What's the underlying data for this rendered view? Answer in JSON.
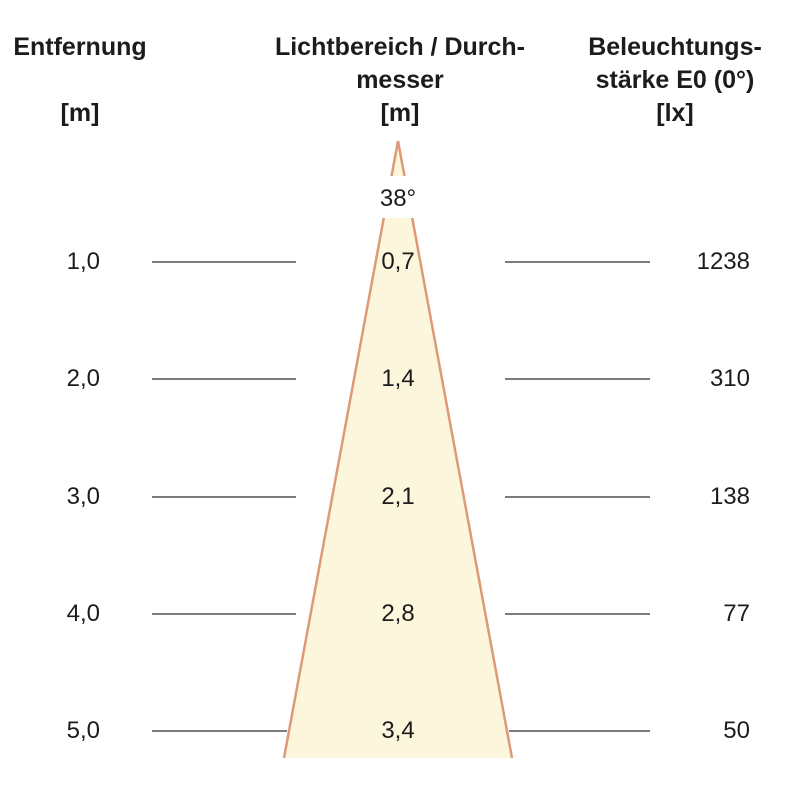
{
  "header": {
    "columns": [
      {
        "name": "distance",
        "lines": [
          "Entfernung"
        ],
        "unit": "[m]"
      },
      {
        "name": "diameter",
        "lines": [
          "Lichtbereich / Durch-",
          "messer"
        ],
        "unit": "[m]"
      },
      {
        "name": "illuminance",
        "lines": [
          "Beleuchtungs-",
          "stärke E0 (0°)"
        ],
        "unit": "[lx]"
      }
    ]
  },
  "beam": {
    "angle_label": "38°"
  },
  "rows": [
    {
      "distance": "1,0",
      "diameter": "0,7",
      "illuminance": "1238"
    },
    {
      "distance": "2,0",
      "diameter": "1,4",
      "illuminance": "310"
    },
    {
      "distance": "3,0",
      "diameter": "2,1",
      "illuminance": "138"
    },
    {
      "distance": "4,0",
      "diameter": "2,8",
      "illuminance": "77"
    },
    {
      "distance": "5,0",
      "diameter": "3,4",
      "illuminance": "50"
    }
  ],
  "colors": {
    "cone_fill": "#FCF6DD",
    "cone_border": "#DC9A77",
    "line_gray": "#7c7c7c",
    "text": "#1c1c1c",
    "background": "#ffffff"
  },
  "chart_data": {
    "type": "table",
    "beam_angle_deg": 38,
    "columns": [
      "Entfernung [m]",
      "Lichtbereich / Durchmesser [m]",
      "Beleuchtungsstärke E0 (0°) [lx]"
    ],
    "distance_m": [
      1.0,
      2.0,
      3.0,
      4.0,
      5.0
    ],
    "diameter_m": [
      0.7,
      1.4,
      2.1,
      2.8,
      3.4
    ],
    "illuminance_lx": [
      1238,
      310,
      138,
      77,
      50
    ]
  }
}
